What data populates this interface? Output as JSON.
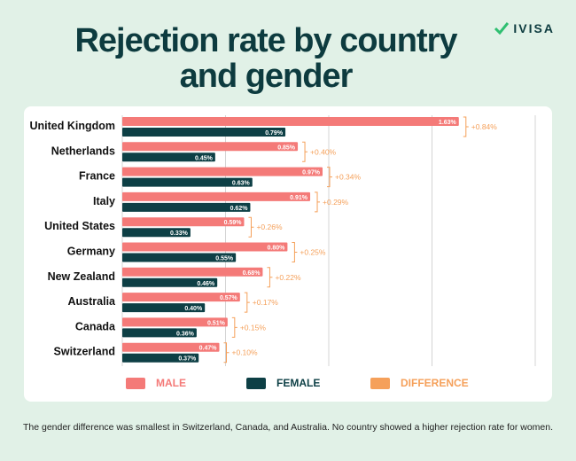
{
  "logo": {
    "text": "IVISA",
    "icon": "check-icon",
    "color": "#2fbf71"
  },
  "title": "Rejection rate by country and gender",
  "chart_data": {
    "type": "bar",
    "orientation": "horizontal",
    "categories": [
      "United Kingdom",
      "Netherlands",
      "France",
      "Italy",
      "United States",
      "Germany",
      "New Zealand",
      "Australia",
      "Canada",
      "Switzerland"
    ],
    "series": [
      {
        "name": "MALE",
        "color": "#f47a78",
        "values": [
          1.63,
          0.85,
          0.97,
          0.91,
          0.59,
          0.8,
          0.68,
          0.57,
          0.51,
          0.47
        ],
        "labels": [
          "1.63%",
          "0.85%",
          "0.97%",
          "0.91%",
          "0.59%",
          "0.80%",
          "0.68%",
          "0.57%",
          "0.51%",
          "0.47%"
        ]
      },
      {
        "name": "FEMALE",
        "color": "#0d3f45",
        "values": [
          0.79,
          0.45,
          0.63,
          0.62,
          0.33,
          0.55,
          0.46,
          0.4,
          0.36,
          0.37
        ],
        "labels": [
          "0.79%",
          "0.45%",
          "0.63%",
          "0.62%",
          "0.33%",
          "0.55%",
          "0.46%",
          "0.40%",
          "0.36%",
          "0.37%"
        ]
      },
      {
        "name": "DIFFERENCE",
        "color": "#f5a05a",
        "values": [
          0.84,
          0.4,
          0.34,
          0.29,
          0.26,
          0.25,
          0.22,
          0.17,
          0.15,
          0.1
        ],
        "labels": [
          "+0.84%",
          "+0.40%",
          "+0.34%",
          "+0.29%",
          "+0.26%",
          "+0.25%",
          "+0.22%",
          "+0.17%",
          "+0.15%",
          "+0.10%"
        ]
      }
    ],
    "xlim": [
      0,
      2.0
    ],
    "grid": true,
    "legend": "bottom"
  },
  "note": "The gender difference was smallest in Switzerland, Canada, and Australia. No country showed a higher rejection rate for women."
}
